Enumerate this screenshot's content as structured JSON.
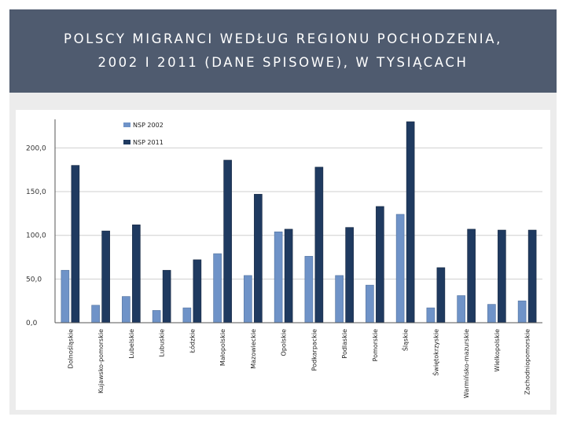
{
  "slide": {
    "title_line1": "POLSCY MIGRANCI WEDŁUG REGIONU POCHODZENIA,",
    "title_line2": "2002 I 2011 (DANE SPISOWE),  W TYSIĄCACH"
  },
  "chart_data": {
    "type": "bar",
    "categories": [
      "Dolnośląskie",
      "Kujawsko-pomorskie",
      "Lubelskie",
      "Lubuskie",
      "Łódzkie",
      "Małopolskie",
      "Mazowieckie",
      "Opolskie",
      "Podkarpackie",
      "Podlaskie",
      "Pomorskie",
      "Śląskie",
      "Świętokrzyskie",
      "Warmińsko-mazurskie",
      "Wielkopolskie",
      "Zachodniopomorskie"
    ],
    "series": [
      {
        "name": "NSP 2002",
        "color": "#6f93c8",
        "values": [
          60,
          20,
          30,
          14,
          17,
          79,
          54,
          104,
          76,
          54,
          43,
          124,
          17,
          31,
          21,
          25
        ]
      },
      {
        "name": "NSP 2011",
        "color": "#1f3a60",
        "values": [
          180,
          105,
          112,
          60,
          72,
          186,
          147,
          107,
          178,
          109,
          133,
          230,
          63,
          107,
          106,
          106
        ]
      }
    ],
    "ylim": [
      0,
      230
    ],
    "yticks": [
      0,
      50,
      100,
      150,
      200
    ],
    "ytick_labels": [
      "0,0",
      "50,0",
      "100,0",
      "150,0",
      "200,0"
    ],
    "grid": true,
    "legend": "top-left"
  }
}
